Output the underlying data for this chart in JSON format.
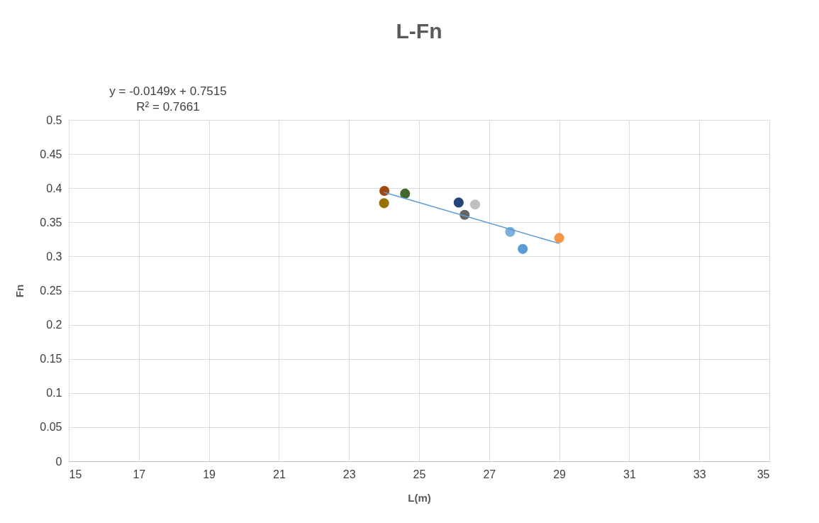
{
  "chart_data": {
    "type": "scatter",
    "title": "L-Fn",
    "xlabel": "L(m)",
    "ylabel": "Fn",
    "annotations": [
      "y = -0.0149x + 0.7515",
      "R² = 0.7661"
    ],
    "series": [
      {
        "x": [
          24.01,
          24.0,
          24.6,
          26.13,
          26.6,
          26.3,
          27.6,
          27.96,
          29.0
        ],
        "values": [
          0.396,
          0.378,
          0.392,
          0.379,
          0.376,
          0.361,
          0.336,
          0.311,
          0.327
        ],
        "colors": [
          "#9e480e",
          "#997300",
          "#43682b",
          "#264478",
          "#bfbfbf",
          "#636363",
          "#7cafdd",
          "#5b9bd5",
          "#f79646"
        ]
      },
      {
        "type": "line",
        "x": [
          24.0,
          29.0
        ],
        "values": [
          0.394,
          0.319
        ],
        "color": "#5b9bd5",
        "marker": "none"
      }
    ],
    "xlim": [
      15,
      35
    ],
    "xticks": [
      15,
      17,
      19,
      21,
      23,
      25,
      27,
      29,
      31,
      33,
      35
    ],
    "ylim": [
      0,
      0.5
    ],
    "yticks": [
      0,
      0.05,
      0.1,
      0.15,
      0.2,
      0.25,
      0.3,
      0.35,
      0.4,
      0.45,
      0.5
    ],
    "grid": true,
    "legend": false,
    "marker": "circle"
  }
}
